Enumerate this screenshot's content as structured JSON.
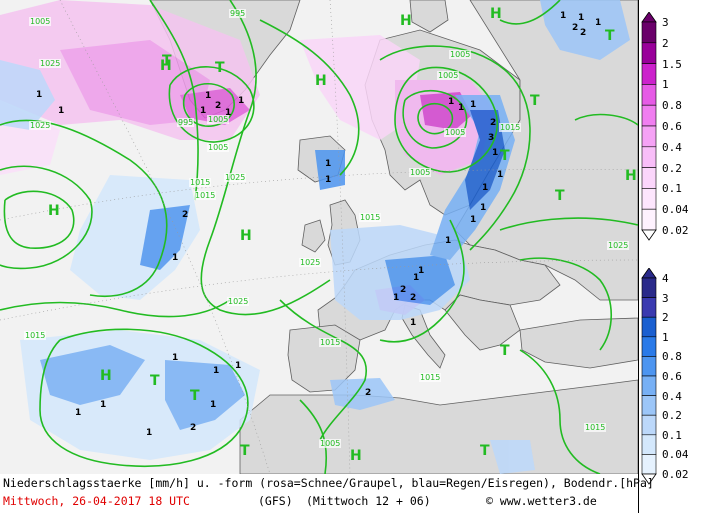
{
  "footer": {
    "line1": "Niederschlagsstaerke [mm/h] u. -form (rosa=Schnee/Graupel, blau=Regen/Eisregen), Bodendr.[hPa]",
    "date": "Mittwoch, 26-04-2017  18 UTC",
    "model": "(GFS)",
    "forecast": "(Mittwoch 12 + 06)",
    "copyright": "© www.wetter3.de"
  },
  "legend_snow": {
    "labels": [
      "3",
      "2",
      "1.5",
      "1",
      "0.8",
      "0.6",
      "0.4",
      "0.2",
      "0.1",
      "0.04",
      "0.02"
    ],
    "colors": [
      "#6a006a",
      "#99009a",
      "#cc22cc",
      "#e65be6",
      "#f07ef0",
      "#f5a2f5",
      "#f8bef8",
      "#fbd6fb",
      "#fde6fd",
      "#fef2fe"
    ]
  },
  "legend_rain": {
    "labels": [
      "4",
      "3",
      "2",
      "1",
      "0.8",
      "0.6",
      "0.4",
      "0.2",
      "0.1",
      "0.04",
      "0.02"
    ],
    "colors": [
      "#2a2a8a",
      "#3a3ab0",
      "#1a5fd0",
      "#2a7ae8",
      "#4d95f0",
      "#77b0f5",
      "#9cc6f8",
      "#bcd8fa",
      "#d4e8fc",
      "#e6f2fe"
    ]
  },
  "pressure_systems": [
    {
      "symbol": "H"
    },
    {
      "symbol": "H"
    },
    {
      "symbol": "H"
    },
    {
      "symbol": "H"
    },
    {
      "symbol": "H"
    },
    {
      "symbol": "H"
    },
    {
      "symbol": "H"
    },
    {
      "symbol": "H"
    },
    {
      "symbol": "H"
    },
    {
      "symbol": "H"
    },
    {
      "symbol": "T"
    },
    {
      "symbol": "T"
    },
    {
      "symbol": "T"
    },
    {
      "symbol": "T"
    },
    {
      "symbol": "T"
    },
    {
      "symbol": "T"
    },
    {
      "symbol": "T"
    },
    {
      "symbol": "T"
    },
    {
      "symbol": "T"
    },
    {
      "symbol": "T"
    },
    {
      "symbol": "T"
    }
  ],
  "isobar_labels": [
    "1005",
    "995",
    "1005",
    "1025",
    "1025",
    "1015",
    "1015",
    "995",
    "1005",
    "1025",
    "1025",
    "1015",
    "1005",
    "1005",
    "1005",
    "1015",
    "1015",
    "1025",
    "1015",
    "1005",
    "1015",
    "1025",
    "1015",
    "1005"
  ],
  "precip_labels": [
    "1",
    "1",
    "1",
    "2",
    "1",
    "1",
    "1",
    "2",
    "3",
    "1",
    "1",
    "1",
    "2",
    "1",
    "1",
    "1",
    "1",
    "2",
    "1",
    "2",
    "1",
    "2",
    "1",
    "1",
    "1",
    "1",
    "1",
    "2",
    "1",
    "1",
    "1",
    "1",
    "1",
    "1",
    "1",
    "1",
    "2",
    "1",
    "2",
    "1",
    "1",
    "1"
  ],
  "colors": {
    "sea": "#f2f2f2",
    "land": "#d9d9d9",
    "coast": "#606060",
    "isobar": "#22bb22"
  }
}
